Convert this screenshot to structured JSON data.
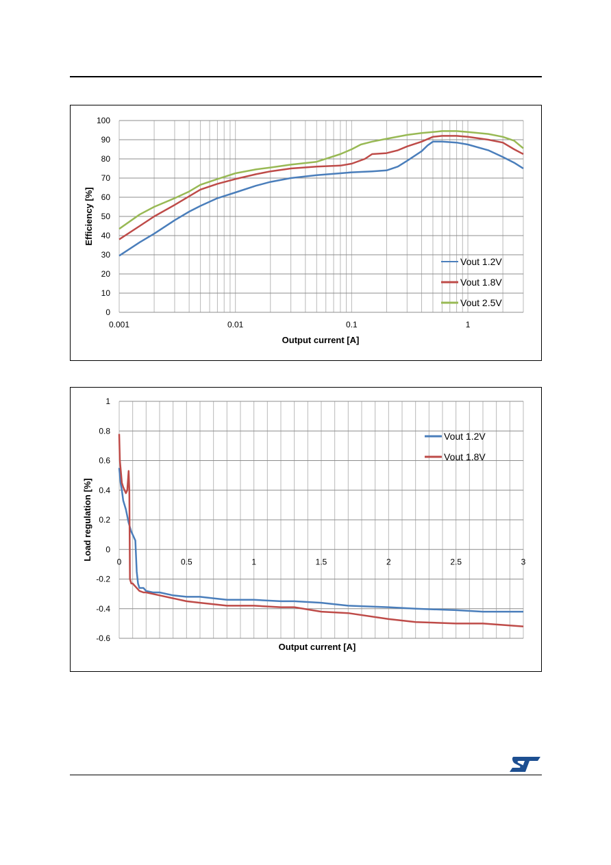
{
  "chart_data": [
    {
      "type": "line",
      "xscale": "log",
      "xlabel": "Output current [A]",
      "ylabel": "Efficiency [%]",
      "xlim": [
        0.001,
        3
      ],
      "ylim": [
        0,
        100
      ],
      "x_ticks": [
        "0.001",
        "0.01",
        "0.1",
        "1"
      ],
      "y_ticks": [
        "0",
        "10",
        "20",
        "30",
        "40",
        "50",
        "60",
        "70",
        "80",
        "90",
        "100"
      ],
      "legend_position": "bottom-right",
      "series": [
        {
          "name": "Vout 1.2V",
          "color": "#4a7ebb",
          "x": [
            0.001,
            0.0015,
            0.002,
            0.003,
            0.004,
            0.005,
            0.007,
            0.01,
            0.015,
            0.02,
            0.03,
            0.05,
            0.08,
            0.1,
            0.15,
            0.2,
            0.25,
            0.3,
            0.4,
            0.45,
            0.5,
            0.6,
            0.8,
            1,
            1.5,
            2,
            2.5,
            3
          ],
          "y": [
            29.5,
            36.5,
            41,
            48,
            52.5,
            55.5,
            59.5,
            62.5,
            66,
            68,
            70,
            71.5,
            72.5,
            73,
            73.5,
            74,
            76,
            79,
            84,
            87,
            89,
            89,
            88.5,
            87.5,
            84.5,
            81,
            78,
            75
          ]
        },
        {
          "name": "Vout 1.8V",
          "color": "#be4b48",
          "x": [
            0.001,
            0.0015,
            0.002,
            0.003,
            0.004,
            0.005,
            0.007,
            0.01,
            0.015,
            0.02,
            0.03,
            0.05,
            0.08,
            0.1,
            0.13,
            0.15,
            0.2,
            0.25,
            0.3,
            0.4,
            0.5,
            0.6,
            0.8,
            1,
            1.5,
            2,
            2.5,
            3
          ],
          "y": [
            38,
            45,
            50,
            56,
            60.5,
            64,
            67,
            69.5,
            72,
            73.5,
            75,
            76,
            76.5,
            77.5,
            80,
            82.5,
            83,
            84.5,
            86.5,
            89,
            91.5,
            92,
            92,
            91.5,
            90,
            88.5,
            85,
            82.5
          ]
        },
        {
          "name": "Vout 2.5V",
          "color": "#98b954",
          "x": [
            0.001,
            0.0015,
            0.002,
            0.003,
            0.004,
            0.005,
            0.007,
            0.01,
            0.015,
            0.02,
            0.03,
            0.05,
            0.08,
            0.1,
            0.12,
            0.15,
            0.2,
            0.3,
            0.4,
            0.5,
            0.6,
            0.8,
            1,
            1.5,
            2,
            2.5,
            3
          ],
          "y": [
            43.5,
            51,
            55,
            59.5,
            63,
            66.5,
            69.5,
            72.5,
            74.5,
            75.5,
            77,
            78.5,
            82.5,
            85,
            87.5,
            89,
            90.5,
            92.5,
            93.5,
            94,
            94.5,
            94.5,
            94,
            93,
            91.5,
            89.5,
            85.5
          ]
        }
      ]
    },
    {
      "type": "line",
      "xlabel": "Output current [A]",
      "ylabel": "Load regulation [%]",
      "xlim": [
        0,
        3
      ],
      "ylim": [
        -0.6,
        1
      ],
      "x_ticks": [
        "0",
        "0.5",
        "1",
        "1.5",
        "2",
        "2.5",
        "3"
      ],
      "y_ticks": [
        "-0.6",
        "-0.4",
        "-0.2",
        "0",
        "0.2",
        "0.4",
        "0.6",
        "0.8",
        "1"
      ],
      "legend_position": "top-right",
      "series": [
        {
          "name": "Vout 1.2V",
          "color": "#4a7ebb",
          "x": [
            0,
            0.005,
            0.01,
            0.02,
            0.03,
            0.05,
            0.07,
            0.09,
            0.1,
            0.12,
            0.13,
            0.14,
            0.15,
            0.16,
            0.18,
            0.2,
            0.25,
            0.3,
            0.4,
            0.5,
            0.6,
            0.7,
            0.8,
            0.9,
            1,
            1.2,
            1.3,
            1.5,
            1.7,
            2,
            2.2,
            2.5,
            2.7,
            3
          ],
          "y": [
            0.55,
            0.5,
            0.45,
            0.4,
            0.33,
            0.27,
            0.18,
            0.12,
            0.1,
            0.06,
            -0.15,
            -0.23,
            -0.26,
            -0.26,
            -0.26,
            -0.28,
            -0.29,
            -0.29,
            -0.31,
            -0.32,
            -0.32,
            -0.33,
            -0.34,
            -0.34,
            -0.34,
            -0.35,
            -0.35,
            -0.36,
            -0.38,
            -0.39,
            -0.4,
            -0.41,
            -0.42,
            -0.42
          ]
        },
        {
          "name": "Vout 1.8V",
          "color": "#be4b48",
          "x": [
            0,
            0.005,
            0.01,
            0.02,
            0.03,
            0.05,
            0.06,
            0.07,
            0.075,
            0.08,
            0.09,
            0.1,
            0.12,
            0.15,
            0.18,
            0.2,
            0.3,
            0.4,
            0.5,
            0.6,
            0.7,
            0.8,
            0.9,
            1,
            1.2,
            1.3,
            1.5,
            1.7,
            2,
            2.2,
            2.5,
            2.7,
            3
          ],
          "y": [
            0.78,
            0.6,
            0.55,
            0.45,
            0.42,
            0.38,
            0.4,
            0.53,
            0.4,
            -0.2,
            -0.23,
            -0.23,
            -0.25,
            -0.28,
            -0.29,
            -0.29,
            -0.31,
            -0.33,
            -0.35,
            -0.36,
            -0.37,
            -0.38,
            -0.38,
            -0.38,
            -0.39,
            -0.39,
            -0.42,
            -0.43,
            -0.47,
            -0.49,
            -0.5,
            -0.5,
            -0.52
          ]
        }
      ]
    }
  ]
}
